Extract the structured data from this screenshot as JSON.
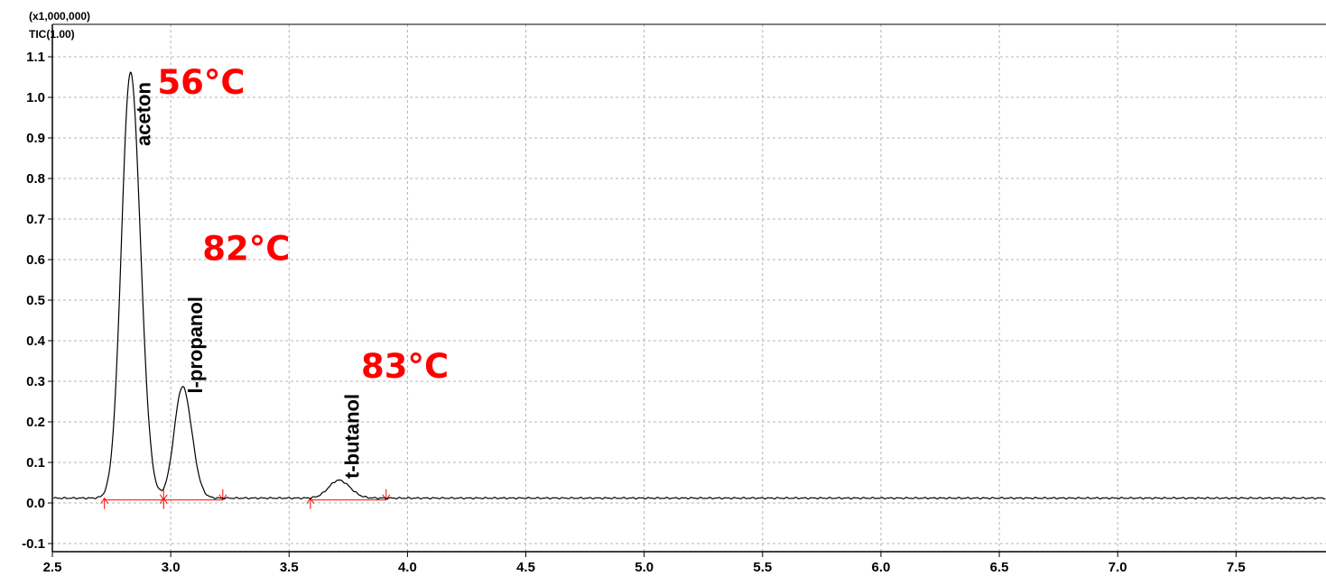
{
  "chart_data": {
    "type": "line",
    "header": {
      "scale": "(x1,000,000)",
      "trace": "TIC(1.00)"
    },
    "xlim": [
      2.5,
      7.88
    ],
    "ylim": [
      -0.12,
      1.18
    ],
    "x_ticks": [
      "2.5",
      "3.0",
      "3.5",
      "4.0",
      "4.5",
      "5.0",
      "5.5",
      "6.0",
      "6.5",
      "7.0",
      "7.5"
    ],
    "y_ticks": [
      "-0.1",
      "0.0",
      "0.1",
      "0.2",
      "0.3",
      "0.4",
      "0.5",
      "0.6",
      "0.7",
      "0.8",
      "0.9",
      "1.0",
      "1.1"
    ],
    "grid": true,
    "baseline": 0.012,
    "peaks": [
      {
        "name": "aceton",
        "rt": 2.83,
        "height": 1.05,
        "width": 0.04,
        "start": 2.72,
        "end": 2.97,
        "temperature": "56°C"
      },
      {
        "name": "l-propanol",
        "rt": 3.05,
        "height": 0.275,
        "width": 0.037,
        "start": 2.97,
        "end": 3.22,
        "temperature": "82°C"
      },
      {
        "name": "t-butanol",
        "rt": 3.71,
        "height": 0.044,
        "width": 0.045,
        "start": 3.59,
        "end": 3.91,
        "temperature": "83°C"
      }
    ]
  }
}
